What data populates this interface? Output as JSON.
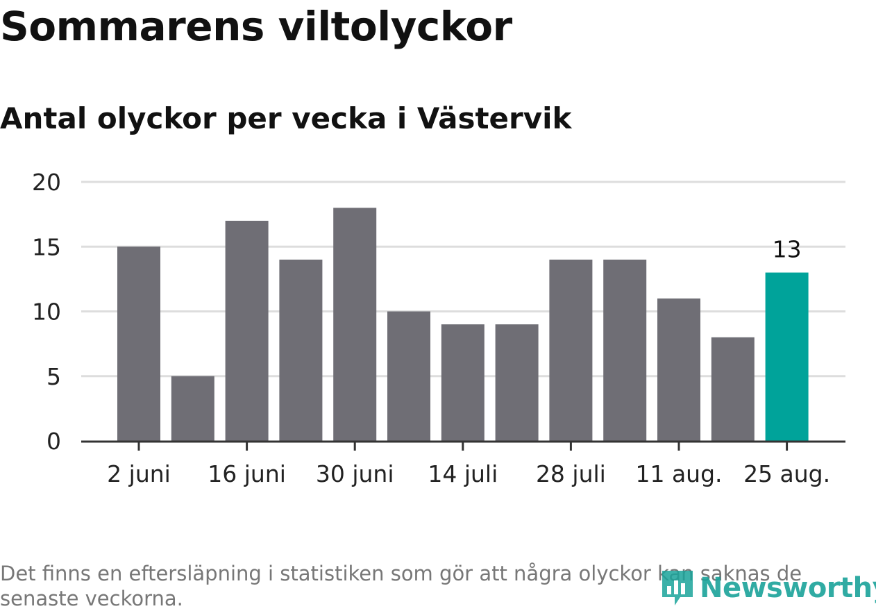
{
  "title": "Sommarens viltolyckor",
  "subtitle": "Antal olyckor per vecka i Västervik",
  "footnote": "Det finns en eftersläpning i statistiken som gör att några olyckor kan saknas de senaste veckorna.",
  "logo": {
    "text": "Newsworthy",
    "icon": "newsworthy-chart-icon"
  },
  "colors": {
    "bar": "#6f6e75",
    "highlight": "#00a39a",
    "grid": "#dddddd",
    "axis": "#333333"
  },
  "chart_data": {
    "type": "bar",
    "x_tick_labels": [
      "2 juni",
      "16 juni",
      "30 juni",
      "14 juli",
      "28 juli",
      "11 aug.",
      "25 aug."
    ],
    "values": [
      15,
      5,
      17,
      14,
      18,
      10,
      9,
      9,
      14,
      14,
      11,
      8,
      13
    ],
    "highlight_index": 12,
    "highlight_label": "13",
    "ylim": [
      0,
      20
    ],
    "yticks": [
      0,
      5,
      10,
      15,
      20
    ],
    "grid": true,
    "xlabel": "",
    "ylabel": ""
  }
}
